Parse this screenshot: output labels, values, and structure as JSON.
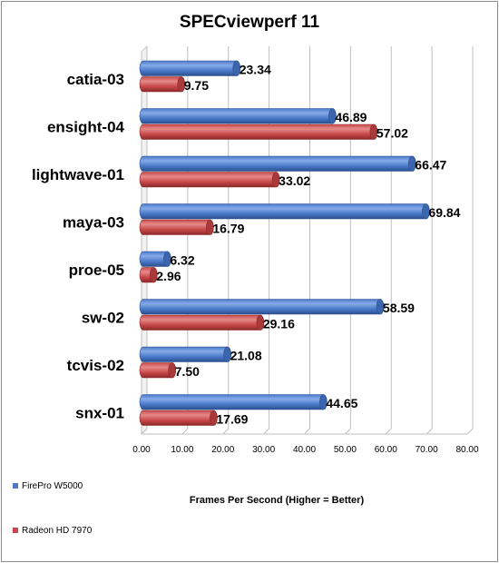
{
  "chart_data": {
    "type": "bar",
    "orientation": "horizontal",
    "title": "SPECviewperf 11",
    "xlabel": "Frames Per Second (Higher = Better)",
    "ylabel": "",
    "categories": [
      "catia-03",
      "ensight-04",
      "lightwave-01",
      "maya-03",
      "proe-05",
      "sw-02",
      "tcvis-02",
      "snx-01"
    ],
    "series": [
      {
        "name": "FirePro W5000",
        "color": "#4a7ac9",
        "values": [
          23.34,
          46.89,
          66.47,
          69.84,
          6.32,
          58.59,
          21.08,
          44.65
        ]
      },
      {
        "name": "Radeon HD 7970",
        "color": "#c8494a",
        "values": [
          9.75,
          57.02,
          33.02,
          16.79,
          2.96,
          29.16,
          7.5,
          17.69
        ]
      }
    ],
    "value_labels": [
      [
        "23.34",
        "46.89",
        "66.47",
        "69.84",
        "6.32",
        "58.59",
        "21.08",
        "44.65"
      ],
      [
        "9.75",
        "57.02",
        "33.02",
        "16.79",
        "2.96",
        "29.16",
        "7.50",
        "17.69"
      ]
    ],
    "xlim": [
      0,
      80
    ],
    "xticks": [
      0,
      10,
      20,
      30,
      40,
      50,
      60,
      70,
      80
    ],
    "xtick_labels": [
      "0.00",
      "10.00",
      "20.00",
      "30.00",
      "40.00",
      "50.00",
      "60.00",
      "70.00",
      "80.00"
    ],
    "grid": true,
    "bar_style": "3d-cylinder",
    "legend_position": "bottom-left"
  }
}
